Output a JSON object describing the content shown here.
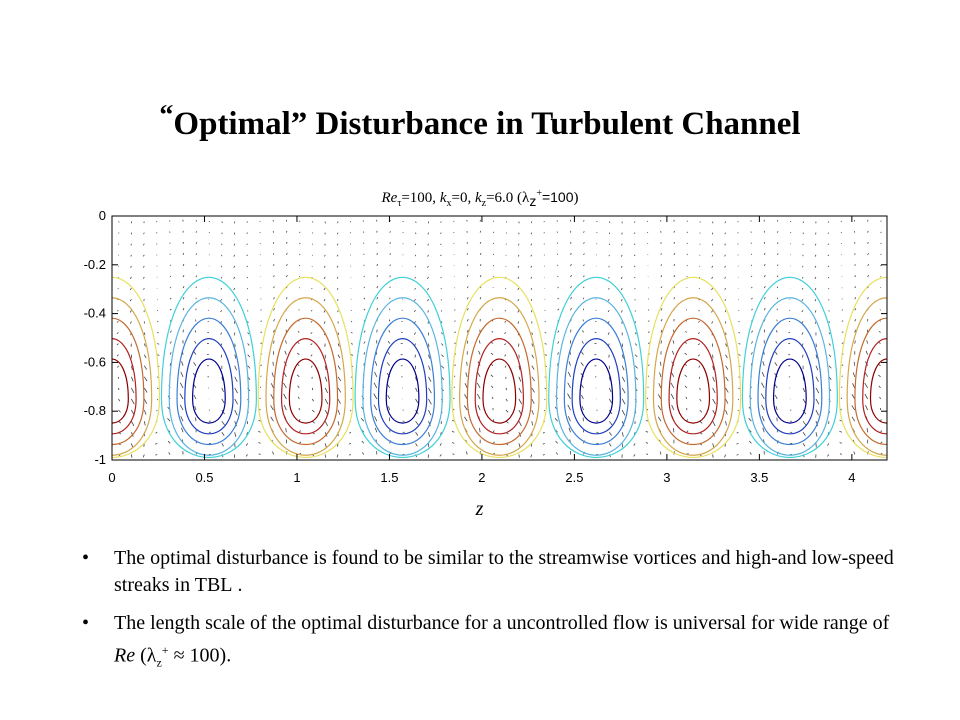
{
  "slide": {
    "title_open_quote": "“",
    "title_text": "Optimal” Disturbance in Turbulent Channel",
    "plot_title": {
      "re": "Re",
      "re_sub": "τ",
      "re_val": "=100, ",
      "kx": "k",
      "kx_sub": "x",
      "kx_val": "=0, ",
      "kz": "k",
      "kz_sub": "z",
      "kz_val": "=6.0 (",
      "lambda": "λ",
      "lambda_sub": "z",
      "lambda_sup": "+",
      "lambda_val": "=100",
      "close": ")"
    },
    "bullets": [
      {
        "text": "The optimal disturbance is found to be similar to the streamwise vortices and high-and low-speed streaks in TBL ."
      },
      {
        "text_before": "The length scale of the optimal disturbance for a uncontrolled flow is universal for wide range of ",
        "re": "Re",
        "open": " (",
        "lambda": "λ",
        "lambda_sub": "z",
        "lambda_sup": "+",
        "approx": " ≈ 100)."
      }
    ]
  },
  "chart_data": {
    "type": "contour",
    "xlabel": "z",
    "ylabel": "",
    "xlim": [
      0,
      4.19
    ],
    "ylim": [
      -1,
      0
    ],
    "x_ticks": [
      "0",
      "0.5",
      "1",
      "1.5",
      "2",
      "2.5",
      "3",
      "3.5",
      "4"
    ],
    "y_ticks": [
      "0",
      "-0.2",
      "-0.4",
      "-0.6",
      "-0.8",
      "-1"
    ],
    "period": 1.047,
    "cell_centers_z": [
      0.0,
      0.524,
      1.047,
      1.571,
      2.094,
      2.618,
      3.142,
      3.665,
      4.189
    ],
    "cell_center_y": -0.75,
    "contour_top_y": -0.25,
    "negative_cells_z": [
      0.524,
      1.571,
      2.618,
      3.665
    ],
    "positive_cells_z": [
      0.0,
      1.047,
      2.094,
      3.142,
      4.189
    ],
    "colors": {
      "negative_levels": [
        "#00008b",
        "#1f3fbf",
        "#3b7fd6",
        "#5ab4e0",
        "#40d0d8"
      ],
      "positive_levels": [
        "#8b0000",
        "#b22222",
        "#c46a30",
        "#d4a64a",
        "#e8e060"
      ],
      "arrows": "#444444"
    },
    "overlay": "velocity vectors (quiver)"
  }
}
